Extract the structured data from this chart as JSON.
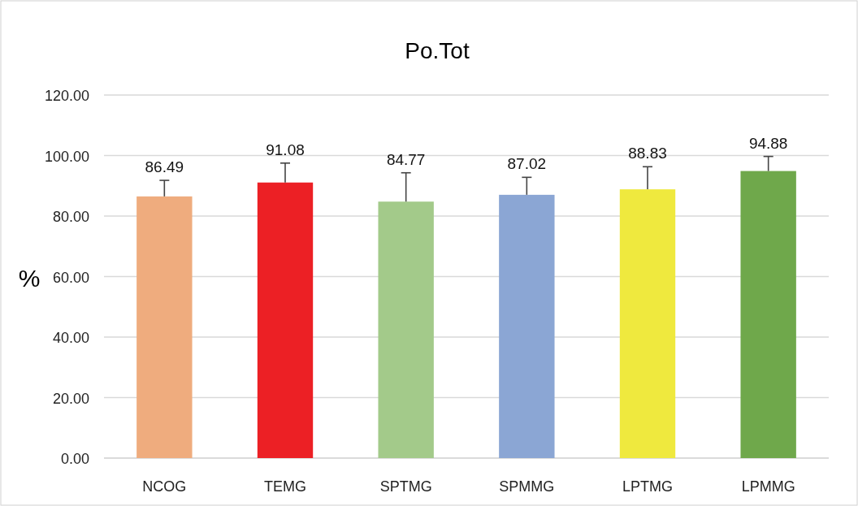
{
  "chart_data": {
    "type": "bar",
    "title": "Po.Tot",
    "ylabel": "%",
    "categories": [
      "NCOG",
      "TEMG",
      "SPTMG",
      "SPMMG",
      "LPTMG",
      "LPMMG"
    ],
    "values": [
      86.49,
      91.08,
      84.77,
      87.02,
      88.83,
      94.88
    ],
    "colors": [
      "#efac7e",
      "#ec2025",
      "#a3ca8a",
      "#8ba6d4",
      "#efe93e",
      "#6fa84b"
    ],
    "errors": [
      [
        86.49,
        91.8
      ],
      [
        91.08,
        97.5
      ],
      [
        84.77,
        94.3
      ],
      [
        87.02,
        92.8
      ],
      [
        88.83,
        96.3
      ],
      [
        94.88,
        99.7
      ]
    ],
    "ylim": [
      0,
      120
    ],
    "yticks": [
      {
        "value": 0,
        "label": "0.00"
      },
      {
        "value": 20,
        "label": "20.00"
      },
      {
        "value": 40,
        "label": "40.00"
      },
      {
        "value": 60,
        "label": "60.00"
      },
      {
        "value": 80,
        "label": "80.00"
      },
      {
        "value": 100,
        "label": "100.00"
      },
      {
        "value": 120,
        "label": "120.00"
      }
    ],
    "grid": "y",
    "data_labels": true
  }
}
